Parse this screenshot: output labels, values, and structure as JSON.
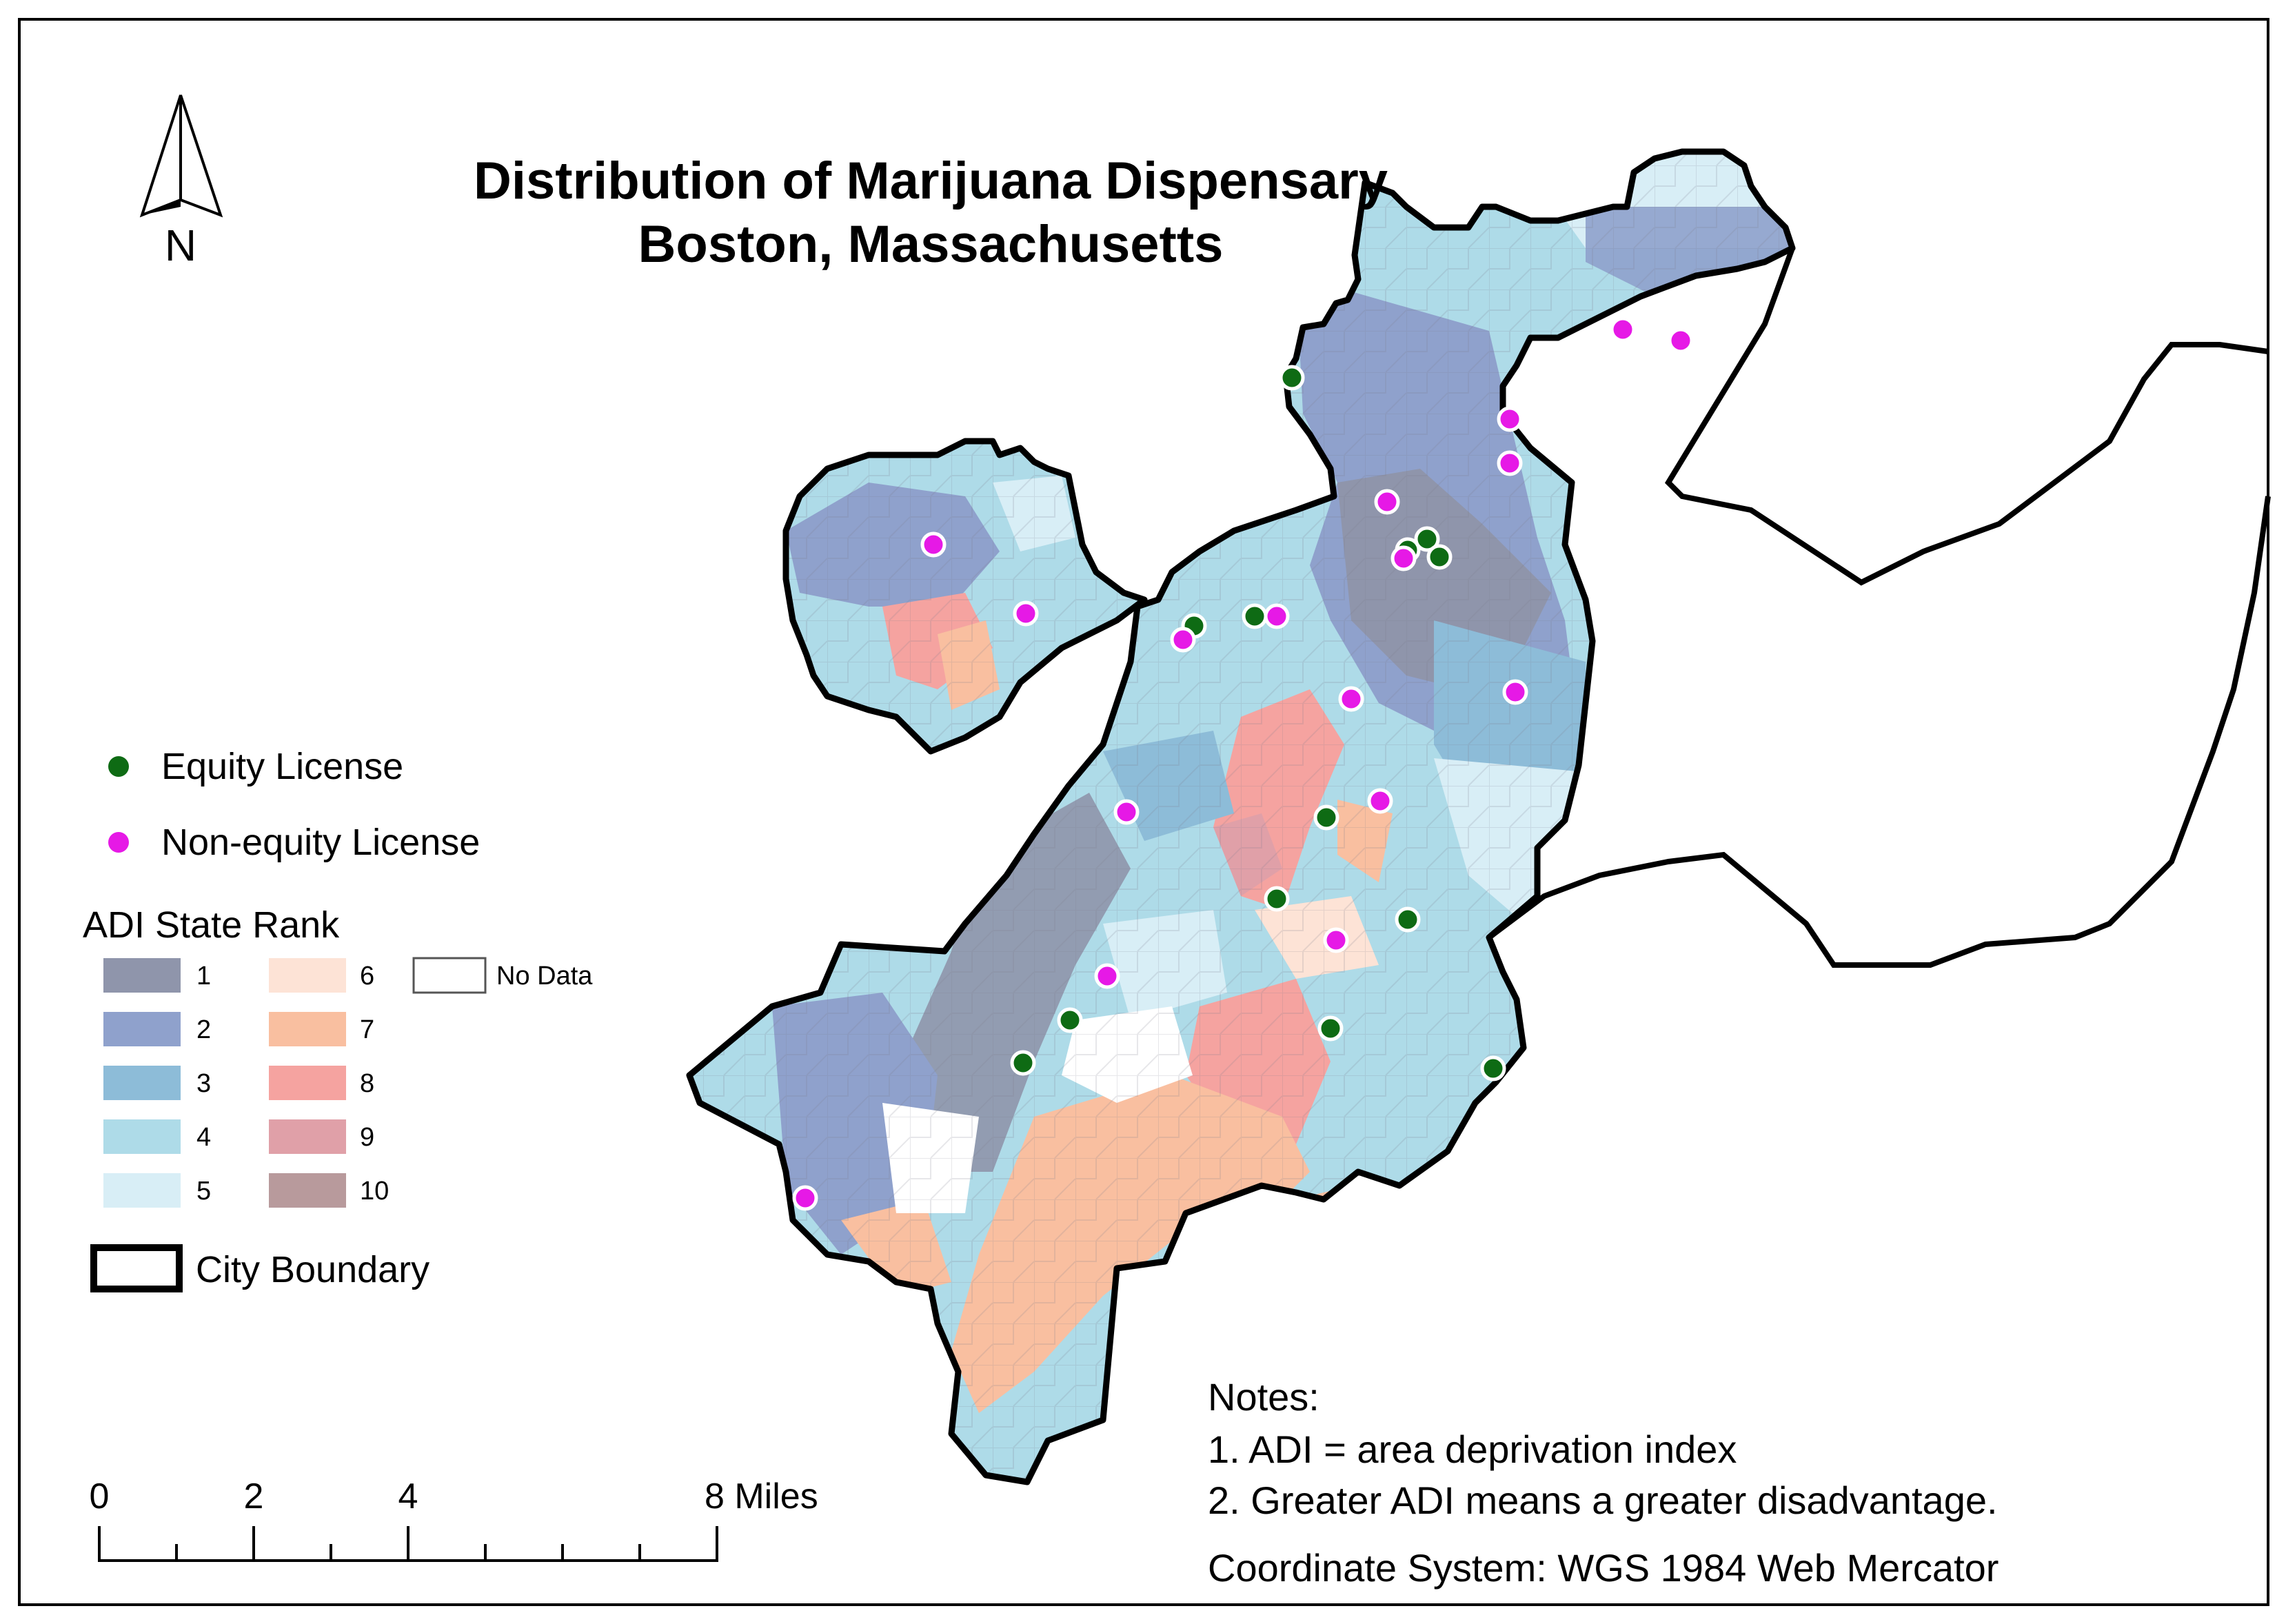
{
  "title": {
    "line1": "Distribution of Marijuana Dispensary",
    "line2": "Boston, Massachusetts"
  },
  "north_arrow": {
    "label": "N"
  },
  "legend": {
    "points": [
      {
        "label": "Equity License",
        "color": "#0e6b14"
      },
      {
        "label": "Non-equity License",
        "color": "#e619e6"
      }
    ],
    "adi_title": "ADI State Rank",
    "ranks": [
      {
        "label": "1",
        "color": "#8f95ab"
      },
      {
        "label": "2",
        "color": "#8fa1cc"
      },
      {
        "label": "3",
        "color": "#8dbcd8"
      },
      {
        "label": "4",
        "color": "#aedbe8"
      },
      {
        "label": "5",
        "color": "#d8eef6"
      },
      {
        "label": "6",
        "color": "#fde3d6"
      },
      {
        "label": "7",
        "color": "#f9bfa0"
      },
      {
        "label": "8",
        "color": "#f5a3a0"
      },
      {
        "label": "9",
        "color": "#e0a0a8"
      },
      {
        "label": "10",
        "color": "#b89a9c"
      }
    ],
    "no_data": "No Data",
    "boundary": "City Boundary"
  },
  "scale_bar": {
    "ticks": [
      "0",
      "2",
      "4",
      "8 Miles"
    ]
  },
  "notes": {
    "heading": "Notes:",
    "line1": "1. ADI = area deprivation index",
    "line2": "2. Greater ADI means a greater disadvantage.",
    "crs": "Coordinate System: WGS 1984 Web Mercator"
  },
  "colors": {
    "equity": "#0e6b14",
    "non_equity": "#e619e6",
    "boundary": "#000000"
  }
}
